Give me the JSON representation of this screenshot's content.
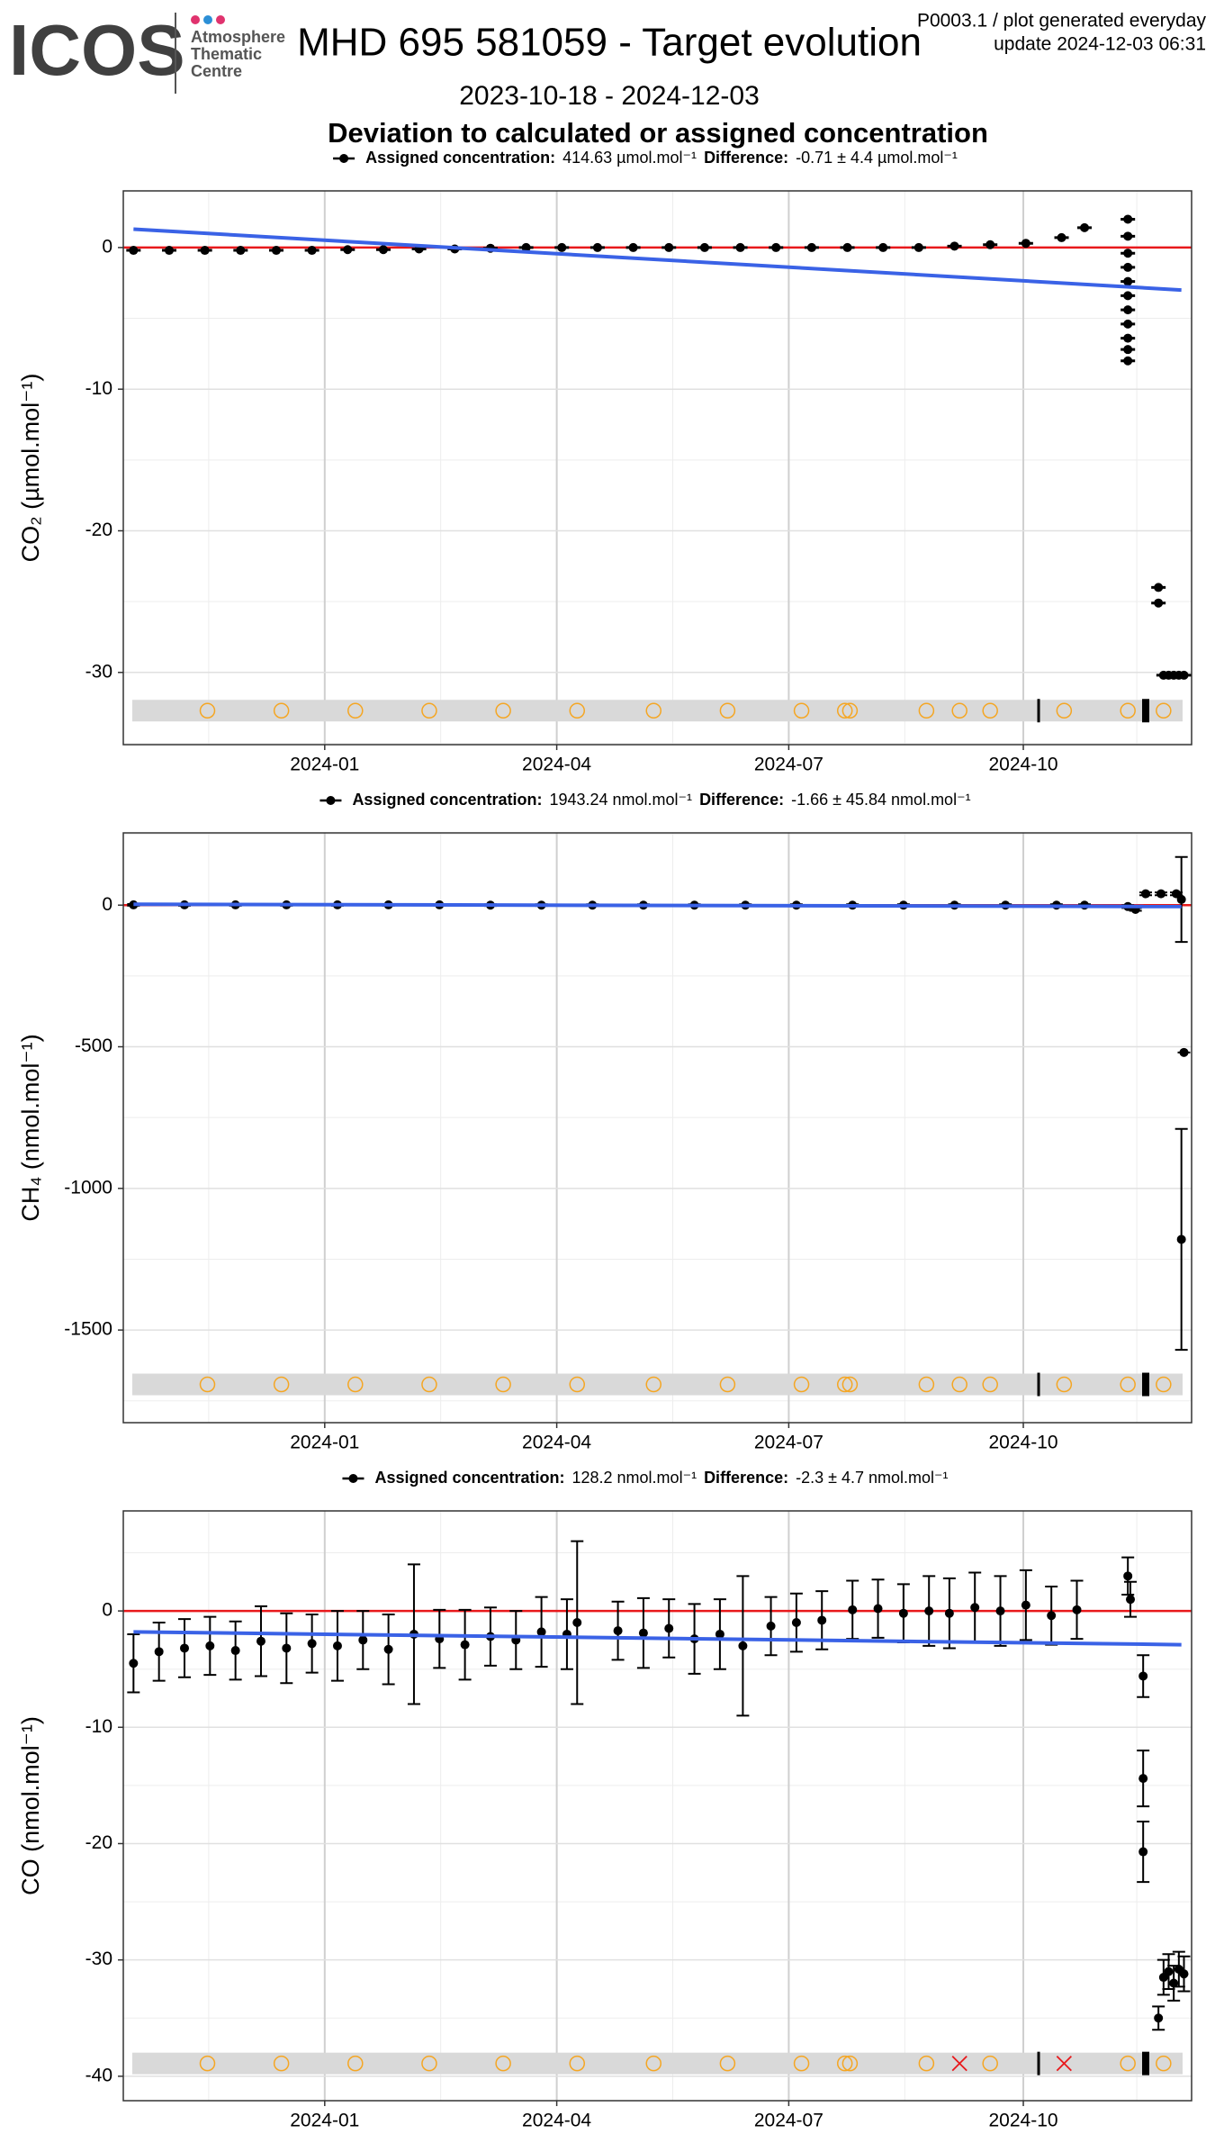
{
  "header": {
    "logo": "ICOS",
    "logo_lines": [
      "Atmosphere",
      "Thematic",
      "Centre"
    ],
    "title": "MHD 695 581059 - Target evolution",
    "date_range": "2023-10-18 - 2024-12-03",
    "product": "P0003.1 / plot generated everyday",
    "update": "update  2024-12-03 06:31",
    "subtitle": "Deviation to calculated or assigned concentration"
  },
  "chart_data": [
    {
      "type": "scatter",
      "ylabel": "CO₂ (µmol.mol⁻¹)",
      "legend": {
        "assigned_label": "Assigned concentration:",
        "assigned_value": "414.63 µmol.mol⁻¹",
        "difference_label": "Difference:",
        "difference_value": "-0.71 ± 4.4 µmol.mol⁻¹"
      },
      "xlim": [
        "2023-10-14",
        "2024-12-06"
      ],
      "xticks": [
        "2024-01",
        "2024-04",
        "2024-07",
        "2024-10"
      ],
      "ylim": [
        -35.1,
        4.0
      ],
      "yticks": [
        -30,
        -20,
        -10,
        0
      ],
      "grid": true,
      "reference": 0,
      "reference_color": "#e8191c",
      "trend": {
        "color": "#3a62e6",
        "x": [
          "2023-10-18",
          "2024-12-02"
        ],
        "values": [
          1.3,
          -3.0
        ]
      },
      "series": [
        {
          "color": "#000000",
          "x": [
            "2023-10-18",
            "2023-11-01",
            "2023-11-15",
            "2023-11-29",
            "2023-12-13",
            "2023-12-27",
            "2024-01-10",
            "2024-01-24",
            "2024-02-07",
            "2024-02-21",
            "2024-03-06",
            "2024-03-20",
            "2024-04-03",
            "2024-04-17",
            "2024-05-01",
            "2024-05-15",
            "2024-05-29",
            "2024-06-12",
            "2024-06-26",
            "2024-07-10",
            "2024-07-24",
            "2024-08-07",
            "2024-08-21",
            "2024-09-04",
            "2024-09-18",
            "2024-10-02",
            "2024-10-16",
            "2024-10-25",
            "2024-11-11",
            "2024-11-11",
            "2024-11-11",
            "2024-11-11",
            "2024-11-11",
            "2024-11-11",
            "2024-11-11",
            "2024-11-11",
            "2024-11-11",
            "2024-11-11",
            "2024-11-11",
            "2024-11-23",
            "2024-11-23",
            "2024-11-25",
            "2024-11-27",
            "2024-11-29",
            "2024-12-01",
            "2024-12-03"
          ],
          "values": [
            -0.2,
            -0.2,
            -0.2,
            -0.2,
            -0.2,
            -0.2,
            -0.15,
            -0.15,
            -0.1,
            -0.1,
            -0.05,
            0,
            0,
            0,
            0,
            0,
            0,
            0,
            0,
            0,
            0,
            0,
            0,
            0.1,
            0.2,
            0.3,
            0.7,
            1.4,
            2.0,
            0.8,
            -0.4,
            -1.4,
            -2.4,
            -3.4,
            -4.4,
            -5.4,
            -6.4,
            -7.2,
            -8.0,
            -24.0,
            -25.1,
            -30.2,
            -30.2,
            -30.2,
            -30.2,
            -30.2
          ]
        }
      ],
      "events": {
        "y": -32.7,
        "x": [
          "2023-11-16",
          "2023-12-15",
          "2024-01-13",
          "2024-02-11",
          "2024-03-11",
          "2024-04-09",
          "2024-05-09",
          "2024-06-07",
          "2024-07-06",
          "2024-07-23",
          "2024-07-25",
          "2024-08-24",
          "2024-09-06",
          "2024-09-18",
          "2024-10-07",
          "2024-10-17",
          "2024-11-11",
          "2024-11-18",
          "2024-11-25"
        ],
        "kinds": [
          "circle",
          "circle",
          "circle",
          "circle",
          "circle",
          "circle",
          "circle",
          "circle",
          "circle",
          "circle",
          "circle",
          "circle",
          "circle",
          "circle",
          "bar",
          "circle",
          "circle",
          "thickbar",
          "circle"
        ]
      }
    },
    {
      "type": "scatter",
      "ylabel": "CH₄ (nmol.mol⁻¹)",
      "legend": {
        "assigned_label": "Assigned concentration:",
        "assigned_value": "1943.24 nmol.mol⁻¹",
        "difference_label": "Difference:",
        "difference_value": "-1.66 ± 45.84 nmol.mol⁻¹"
      },
      "xlim": [
        "2023-10-14",
        "2024-12-06"
      ],
      "xticks": [
        "2024-01",
        "2024-04",
        "2024-07",
        "2024-10"
      ],
      "ylim": [
        -1827,
        255
      ],
      "yticks": [
        -1500,
        -1000,
        -500,
        0
      ],
      "grid": true,
      "reference": 0,
      "reference_color": "#e8191c",
      "trend": {
        "color": "#3a62e6",
        "x": [
          "2023-10-18",
          "2024-12-02"
        ],
        "values": [
          3,
          -5
        ]
      },
      "series": [
        {
          "color": "#000000",
          "x": [
            "2023-10-18",
            "2023-11-07",
            "2023-11-27",
            "2023-12-17",
            "2024-01-06",
            "2024-01-26",
            "2024-02-15",
            "2024-03-06",
            "2024-03-26",
            "2024-04-15",
            "2024-05-05",
            "2024-05-25",
            "2024-06-14",
            "2024-07-04",
            "2024-07-26",
            "2024-08-15",
            "2024-09-04",
            "2024-09-24",
            "2024-10-14",
            "2024-10-25",
            "2024-11-11",
            "2024-11-14",
            "2024-11-18",
            "2024-11-24",
            "2024-11-30",
            "2024-12-02",
            "2024-12-03",
            "2024-12-02"
          ],
          "values": [
            1,
            1,
            1,
            1,
            1,
            1,
            1,
            0,
            0,
            0,
            0,
            0,
            0,
            0,
            0,
            0,
            0,
            0,
            0,
            0,
            -5,
            -15,
            40,
            40,
            40,
            20,
            -520,
            -1180
          ],
          "errors": [
            3,
            3,
            3,
            3,
            3,
            3,
            3,
            3,
            3,
            3,
            3,
            3,
            3,
            3,
            3,
            3,
            3,
            3,
            3,
            3,
            5,
            5,
            5,
            5,
            5,
            150,
            0,
            390
          ]
        }
      ],
      "events": {
        "y": -1692,
        "x": [
          "2023-11-16",
          "2023-12-15",
          "2024-01-13",
          "2024-02-11",
          "2024-03-11",
          "2024-04-09",
          "2024-05-09",
          "2024-06-07",
          "2024-07-06",
          "2024-07-23",
          "2024-07-25",
          "2024-08-24",
          "2024-09-06",
          "2024-09-18",
          "2024-10-07",
          "2024-10-17",
          "2024-11-11",
          "2024-11-18",
          "2024-11-25"
        ],
        "kinds": [
          "circle",
          "circle",
          "circle",
          "circle",
          "circle",
          "circle",
          "circle",
          "circle",
          "circle",
          "circle",
          "circle",
          "circle",
          "circle",
          "circle",
          "bar",
          "circle",
          "circle",
          "thickbar",
          "circle"
        ]
      }
    },
    {
      "type": "scatter",
      "ylabel": "CO (nmol.mol⁻¹)",
      "legend": {
        "assigned_label": "Assigned concentration:",
        "assigned_value": "128.2 nmol.mol⁻¹",
        "difference_label": "Difference:",
        "difference_value": "-2.3 ± 4.7 nmol.mol⁻¹"
      },
      "xlim": [
        "2023-10-14",
        "2024-12-06"
      ],
      "xticks": [
        "2024-01",
        "2024-04",
        "2024-07",
        "2024-10"
      ],
      "ylim": [
        -42.1,
        8.6
      ],
      "yticks": [
        -40,
        -30,
        -20,
        -10,
        0
      ],
      "grid": true,
      "reference": 0,
      "reference_color": "#e8191c",
      "trend": {
        "color": "#3a62e6",
        "x": [
          "2023-10-18",
          "2024-12-02"
        ],
        "values": [
          -1.8,
          -2.9
        ]
      },
      "series": [
        {
          "color": "#000000",
          "x": [
            "2023-10-18",
            "2023-10-28",
            "2023-11-07",
            "2023-11-17",
            "2023-11-27",
            "2023-12-07",
            "2023-12-17",
            "2023-12-27",
            "2024-01-06",
            "2024-01-16",
            "2024-01-26",
            "2024-02-05",
            "2024-02-15",
            "2024-02-25",
            "2024-03-06",
            "2024-03-16",
            "2024-03-26",
            "2024-04-05",
            "2024-04-09",
            "2024-04-25",
            "2024-05-05",
            "2024-05-15",
            "2024-05-25",
            "2024-06-04",
            "2024-06-13",
            "2024-06-24",
            "2024-07-04",
            "2024-07-14",
            "2024-07-26",
            "2024-08-05",
            "2024-08-15",
            "2024-08-25",
            "2024-09-02",
            "2024-09-12",
            "2024-09-22",
            "2024-10-02",
            "2024-10-12",
            "2024-10-22",
            "2024-11-11",
            "2024-11-12",
            "2024-11-17",
            "2024-11-17",
            "2024-11-17",
            "2024-11-23",
            "2024-11-25",
            "2024-11-27",
            "2024-11-29",
            "2024-12-01",
            "2024-12-03"
          ],
          "values": [
            -4.5,
            -3.5,
            -3.2,
            -3.0,
            -3.4,
            -2.6,
            -3.2,
            -2.8,
            -3.0,
            -2.5,
            -3.3,
            -2.0,
            -2.4,
            -2.9,
            -2.2,
            -2.5,
            -1.8,
            -2.0,
            -1.0,
            -1.7,
            -1.9,
            -1.5,
            -2.4,
            -2.0,
            -3.0,
            -1.3,
            -1.0,
            -0.8,
            0.1,
            0.2,
            -0.2,
            0.0,
            -0.2,
            0.3,
            0.0,
            0.5,
            -0.4,
            0.1,
            3.0,
            1.0,
            -5.6,
            -14.4,
            -20.7,
            -35.0,
            -31.5,
            -31.0,
            -32.0,
            -30.8,
            -31.2
          ],
          "errors": [
            2.5,
            2.5,
            2.5,
            2.5,
            2.5,
            3,
            3,
            2.5,
            3,
            2.5,
            3,
            6,
            2.5,
            3,
            2.5,
            2.5,
            3,
            3,
            7,
            2.5,
            3,
            2.5,
            3,
            3,
            6,
            2.5,
            2.5,
            2.5,
            2.5,
            2.5,
            2.5,
            3,
            3,
            3,
            3,
            3,
            2.5,
            2.5,
            1.6,
            1.5,
            1.8,
            2.4,
            2.6,
            1,
            1.5,
            1.5,
            1.5,
            1.5,
            1.5
          ]
        }
      ],
      "events": {
        "y": -38.9,
        "x": [
          "2023-11-16",
          "2023-12-15",
          "2024-01-13",
          "2024-02-11",
          "2024-03-11",
          "2024-04-09",
          "2024-05-09",
          "2024-06-07",
          "2024-07-06",
          "2024-07-23",
          "2024-07-25",
          "2024-08-24",
          "2024-09-06",
          "2024-09-18",
          "2024-10-07",
          "2024-10-17",
          "2024-11-11",
          "2024-11-18",
          "2024-11-25"
        ],
        "kinds": [
          "circle",
          "circle",
          "circle",
          "circle",
          "circle",
          "circle",
          "circle",
          "circle",
          "circle",
          "circle",
          "circle",
          "circle",
          "cross",
          "circle",
          "bar",
          "cross",
          "circle",
          "thickbar",
          "circle"
        ]
      }
    }
  ]
}
